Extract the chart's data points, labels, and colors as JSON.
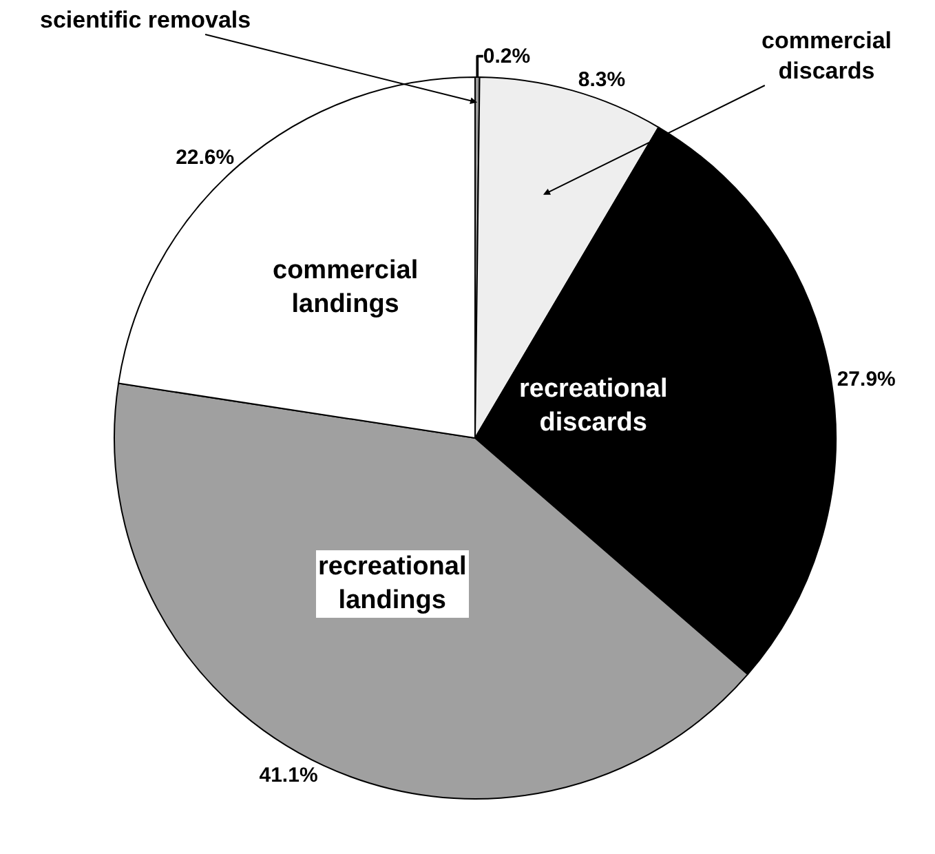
{
  "chart_data": {
    "type": "pie",
    "categories": [
      "scientific removals",
      "commercial discards",
      "recreational discards",
      "recreational landings",
      "commercial landings"
    ],
    "values": [
      0.2,
      8.3,
      27.9,
      41.1,
      22.6
    ],
    "colors": [
      "#999999",
      "#eeeeee",
      "#000000",
      "#a0a0a0",
      "#ffffff"
    ],
    "value_labels": [
      "0.2%",
      "8.3%",
      "27.9%",
      "41.1%",
      "22.6%"
    ]
  }
}
